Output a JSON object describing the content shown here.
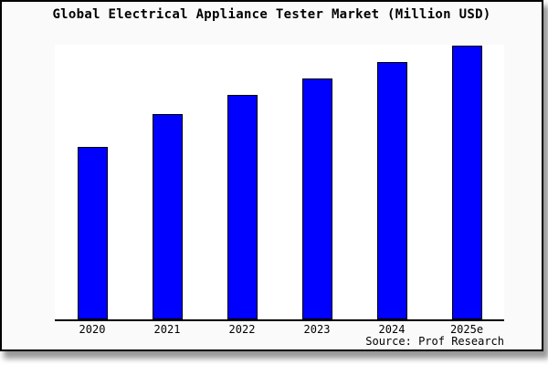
{
  "chart_data": {
    "type": "bar",
    "title": "Global Electrical Appliance Tester Market (Million USD)",
    "categories": [
      "2020",
      "2021",
      "2022",
      "2023",
      "2024",
      "2025e"
    ],
    "values": [
      63,
      75,
      82,
      88,
      94,
      100
    ],
    "value_axis_visible": false,
    "value_scale_note": "relative estimates, tallest bar (2025e) = 100",
    "ylim": [
      0,
      100
    ],
    "grid": false,
    "legend": false,
    "source": "Source: Prof Research",
    "bar_color": "#0000ff",
    "bar_border_color": "#000000",
    "axis_color": "#000000",
    "card_background": "#fafafa",
    "plot_background": "#ffffff",
    "text_color": "#000000"
  }
}
